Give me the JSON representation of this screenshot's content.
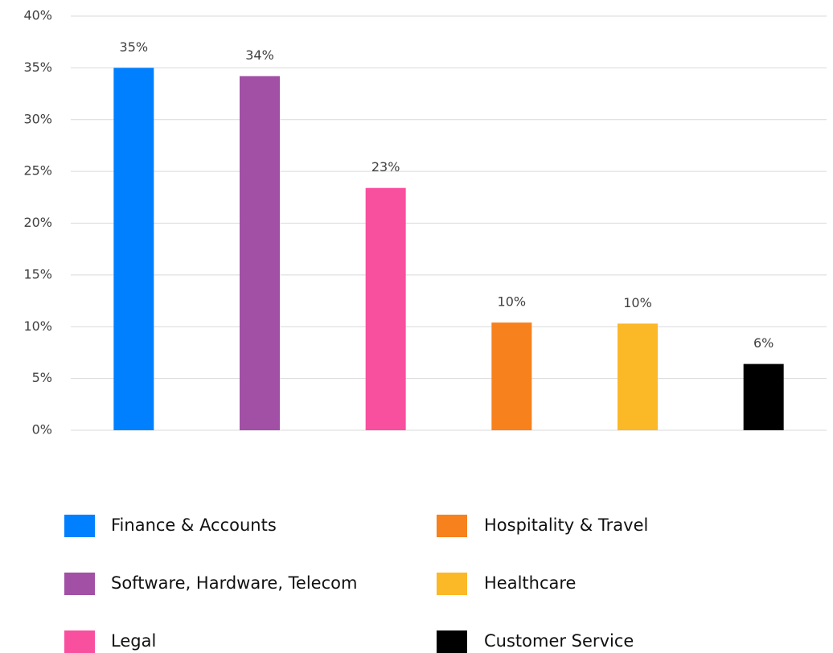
{
  "chart_data": {
    "type": "bar",
    "categories": [
      "Finance & Accounts",
      "Software, Hardware, Telecom",
      "Legal",
      "Hospitality & Travel",
      "Healthcare",
      "Customer Service"
    ],
    "values": [
      35,
      34.2,
      23.4,
      10.4,
      10.3,
      6.4
    ],
    "value_labels": [
      "35%",
      "34%",
      "23%",
      "10%",
      "10%",
      "6%"
    ],
    "colors": [
      "#0080ff",
      "#a24fa6",
      "#f94f9f",
      "#f7811d",
      "#fbb827",
      "#000000"
    ],
    "ylim": [
      0,
      40
    ],
    "yticks": [
      {
        "value": 0,
        "label": "0%"
      },
      {
        "value": 5,
        "label": "5%"
      },
      {
        "value": 10,
        "label": "10%"
      },
      {
        "value": 15,
        "label": "15%"
      },
      {
        "value": 20,
        "label": "20%"
      },
      {
        "value": 25,
        "label": "25%"
      },
      {
        "value": 30,
        "label": "30%"
      },
      {
        "value": 35,
        "label": "35%"
      },
      {
        "value": 40,
        "label": "40%"
      }
    ],
    "grid": true
  }
}
